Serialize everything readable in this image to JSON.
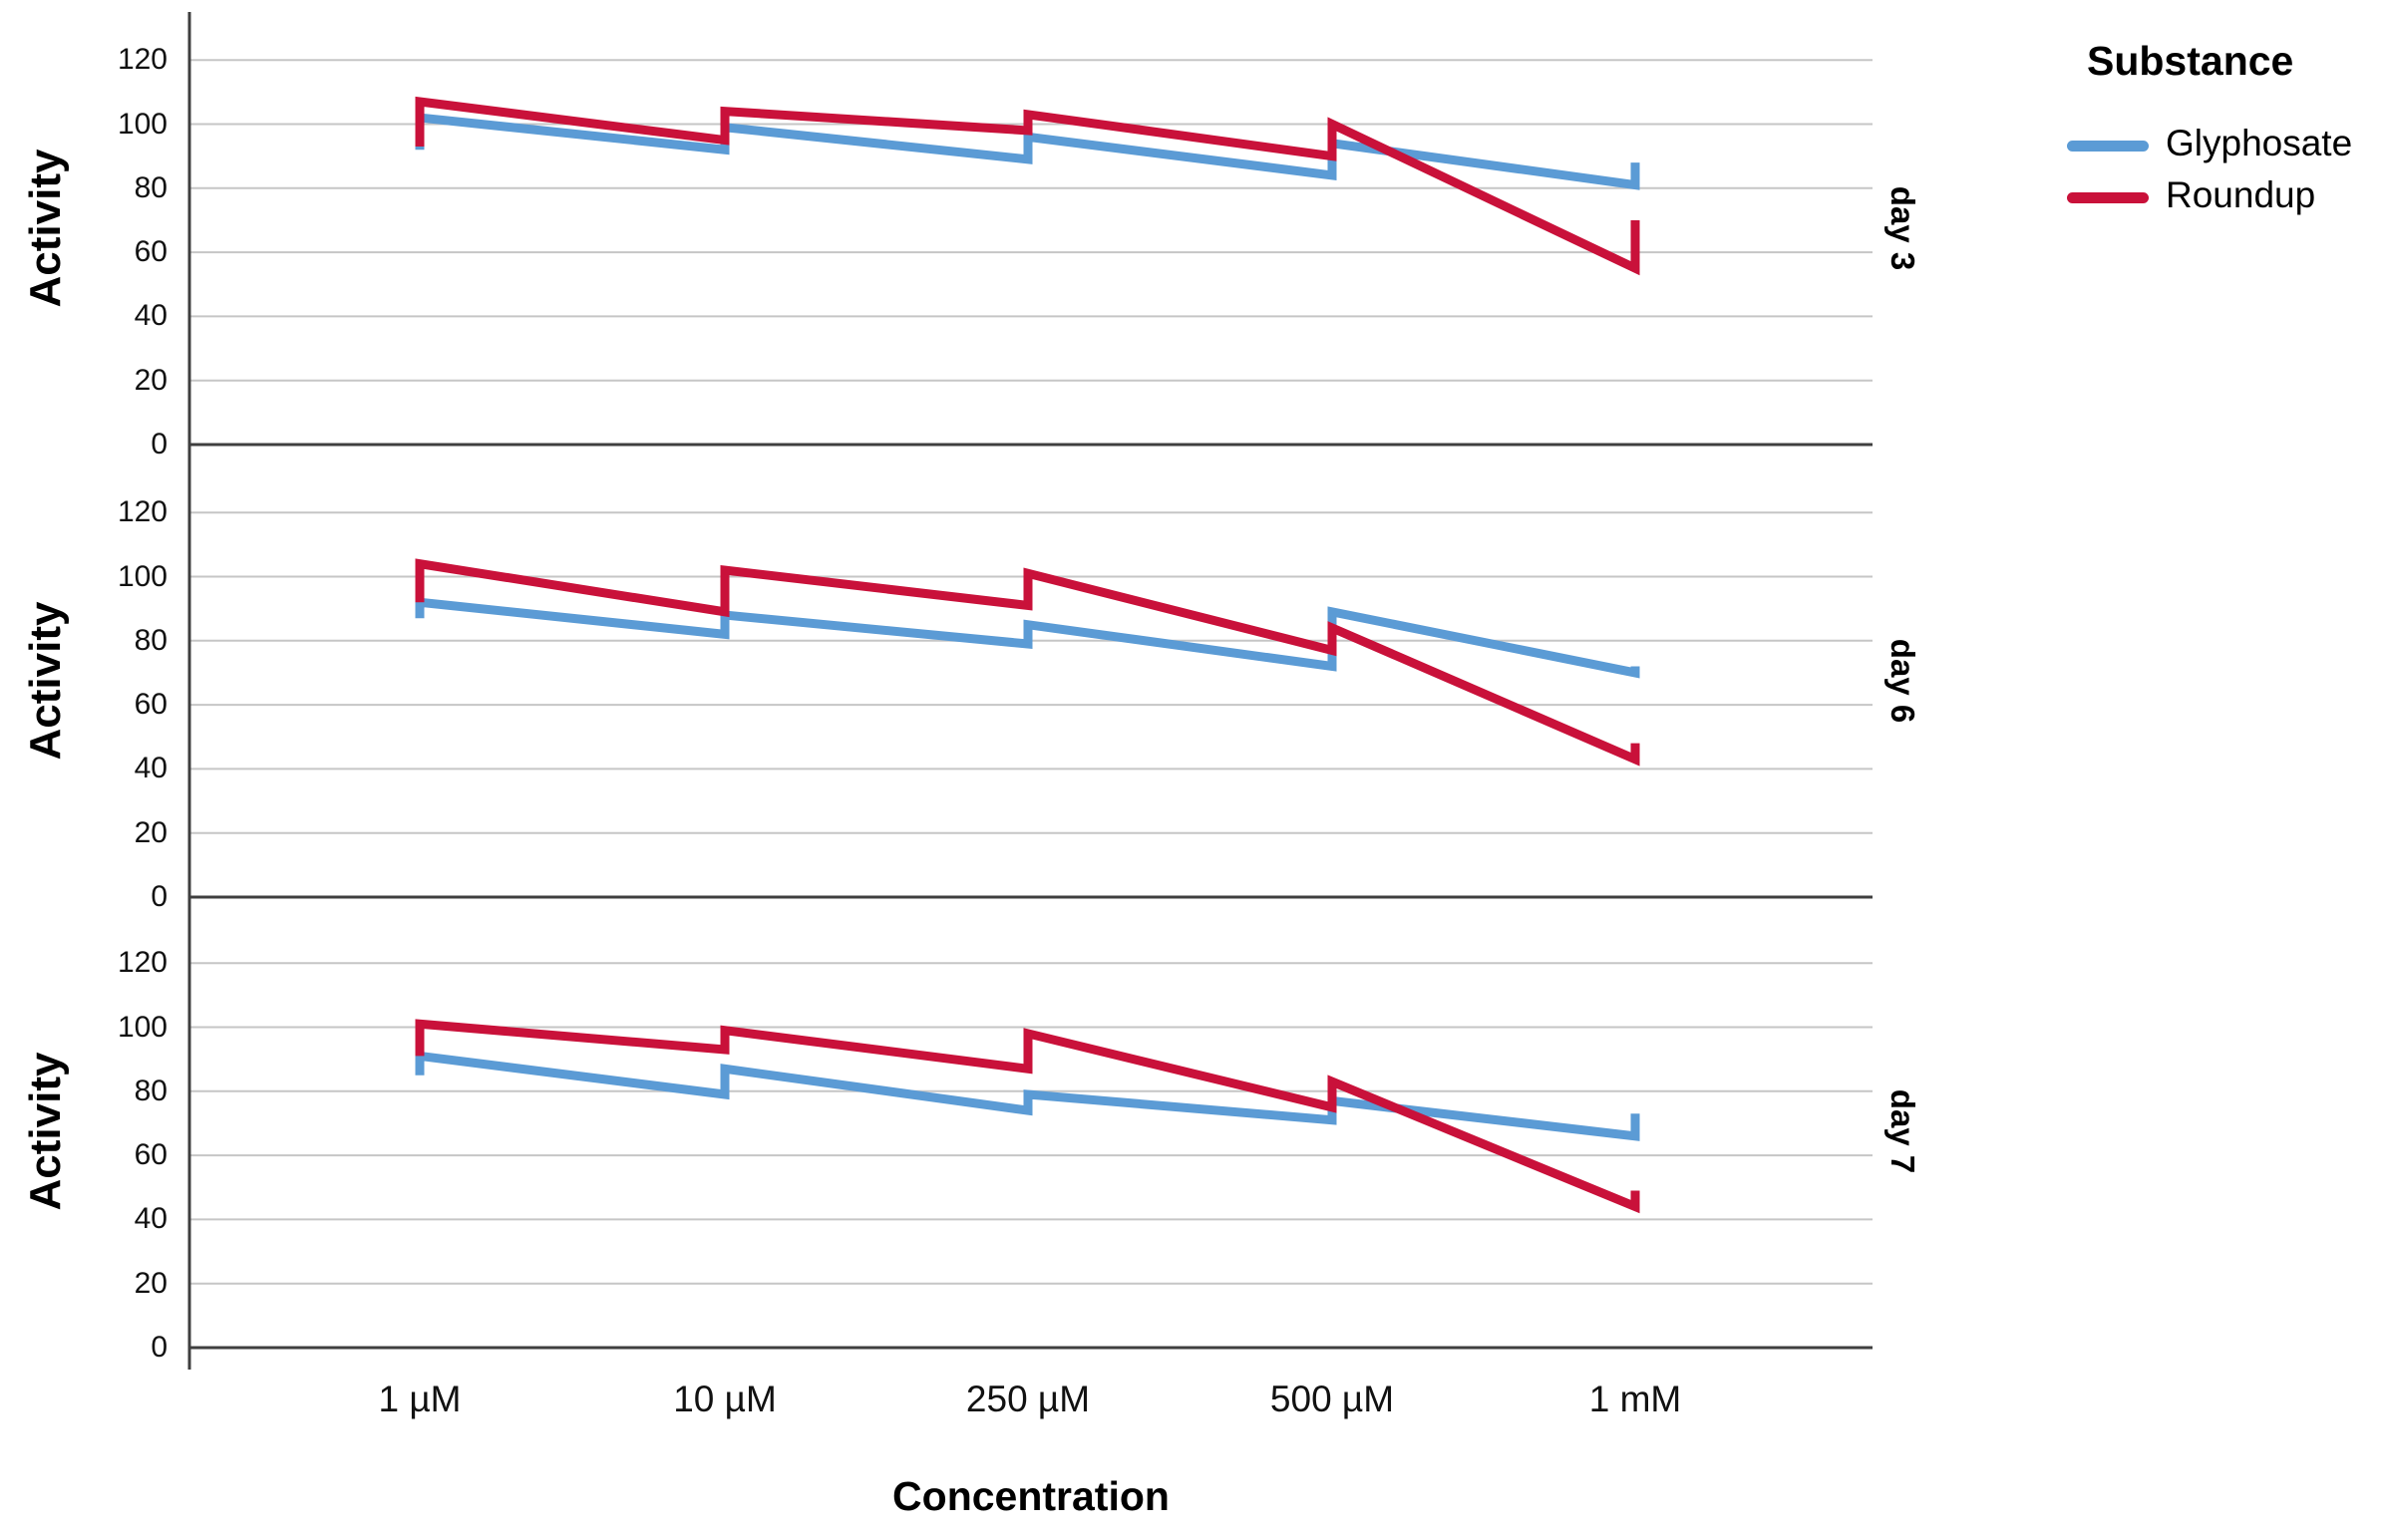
{
  "chart_data": {
    "type": "line",
    "title": "",
    "xlabel": "Concentration",
    "ylabel": "Activity",
    "categories": [
      "1 µM",
      "10 µM",
      "250 µM",
      "500 µM",
      "1 mM"
    ],
    "y_ticks": [
      0,
      20,
      40,
      60,
      80,
      100,
      120
    ],
    "ylim": [
      0,
      135
    ],
    "grid": true,
    "value_format": "each concentration has [low, high] replicate pair; line goes vertical between them",
    "legend": {
      "title": "Substance",
      "position": "top-right",
      "entries": [
        {
          "label": "Glyphosate",
          "color": "#5B9BD5"
        },
        {
          "label": "Roundup",
          "color": "#C9113A"
        }
      ]
    },
    "panels": [
      {
        "label": "day 3",
        "series": [
          {
            "name": "Glyphosate",
            "color": "#5B9BD5",
            "values": [
              [
                92,
                102
              ],
              [
                92,
                99
              ],
              [
                89,
                96
              ],
              [
                84,
                94
              ],
              [
                81,
                88
              ]
            ]
          },
          {
            "name": "Roundup",
            "color": "#C9113A",
            "values": [
              [
                93,
                107
              ],
              [
                95,
                104
              ],
              [
                98,
                103
              ],
              [
                90,
                100
              ],
              [
                55,
                70
              ]
            ]
          }
        ]
      },
      {
        "label": "day 6",
        "series": [
          {
            "name": "Glyphosate",
            "color": "#5B9BD5",
            "values": [
              [
                87,
                92
              ],
              [
                82,
                88
              ],
              [
                79,
                85
              ],
              [
                72,
                89
              ],
              [
                70,
                72
              ]
            ]
          },
          {
            "name": "Roundup",
            "color": "#C9113A",
            "values": [
              [
                92,
                104
              ],
              [
                89,
                102
              ],
              [
                91,
                101
              ],
              [
                77,
                84
              ],
              [
                43,
                48
              ]
            ]
          }
        ]
      },
      {
        "label": "day 7",
        "series": [
          {
            "name": "Glyphosate",
            "color": "#5B9BD5",
            "values": [
              [
                85,
                91
              ],
              [
                79,
                87
              ],
              [
                74,
                79
              ],
              [
                71,
                77
              ],
              [
                66,
                73
              ]
            ]
          },
          {
            "name": "Roundup",
            "color": "#C9113A",
            "values": [
              [
                91,
                101
              ],
              [
                93,
                99
              ],
              [
                87,
                98
              ],
              [
                75,
                83
              ],
              [
                44,
                49
              ]
            ]
          }
        ]
      }
    ]
  }
}
